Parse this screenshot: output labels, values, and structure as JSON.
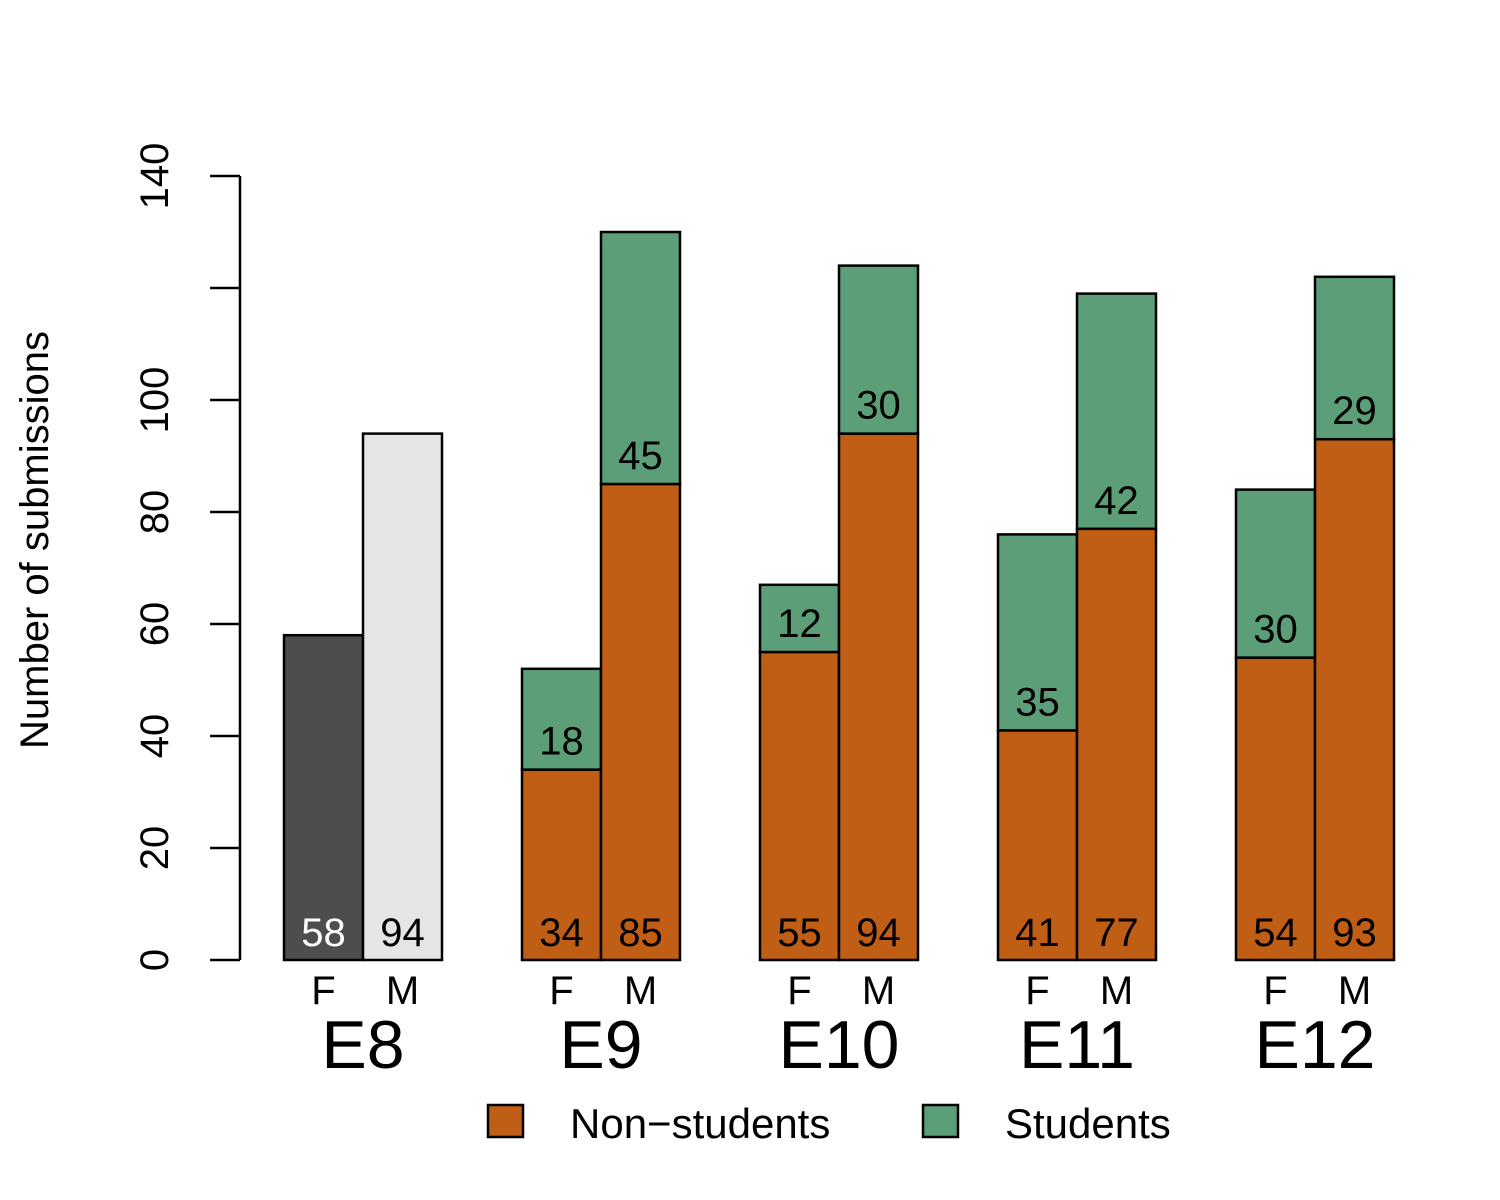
{
  "chart_data": {
    "type": "bar",
    "ylabel": "Number of submissions",
    "ylim": [
      0,
      140
    ],
    "y_ticks": [
      0,
      20,
      40,
      60,
      80,
      100,
      120,
      140
    ],
    "y_tick_labels": [
      "0",
      "20",
      "40",
      "60",
      "80",
      "100",
      "",
      "140"
    ],
    "colors": {
      "non_students": "#BF5E14",
      "students": "#5B9E78",
      "e8_female": "#4D4D4D",
      "e8_male": "#E5E5E5"
    },
    "groups": [
      {
        "name": "E8",
        "bars": [
          {
            "sex": "F",
            "total": 58,
            "label": "58",
            "color_key": "e8_female",
            "label_color": "#ffffff"
          },
          {
            "sex": "M",
            "total": 94,
            "label": "94",
            "color_key": "e8_male",
            "label_color": "#000000"
          }
        ]
      },
      {
        "name": "E9",
        "bars": [
          {
            "sex": "F",
            "non_students": 34,
            "students": 18,
            "non_label": "34",
            "stu_label": "18"
          },
          {
            "sex": "M",
            "non_students": 85,
            "students": 45,
            "non_label": "85",
            "stu_label": "45"
          }
        ]
      },
      {
        "name": "E10",
        "bars": [
          {
            "sex": "F",
            "non_students": 55,
            "students": 12,
            "non_label": "55",
            "stu_label": "12"
          },
          {
            "sex": "M",
            "non_students": 94,
            "students": 30,
            "non_label": "94",
            "stu_label": "30"
          }
        ]
      },
      {
        "name": "E11",
        "bars": [
          {
            "sex": "F",
            "non_students": 41,
            "students": 35,
            "non_label": "41",
            "stu_label": "35"
          },
          {
            "sex": "M",
            "non_students": 77,
            "students": 42,
            "non_label": "77",
            "stu_label": "42"
          }
        ]
      },
      {
        "name": "E12",
        "bars": [
          {
            "sex": "F",
            "non_students": 54,
            "students": 30,
            "non_label": "54",
            "stu_label": "30"
          },
          {
            "sex": "M",
            "non_students": 93,
            "students": 29,
            "non_label": "93",
            "stu_label": "29"
          }
        ]
      }
    ],
    "legend": {
      "position": "bottom",
      "entries": [
        {
          "label": "Non−students",
          "color_key": "non_students"
        },
        {
          "label": "Students",
          "color_key": "students"
        }
      ]
    }
  }
}
